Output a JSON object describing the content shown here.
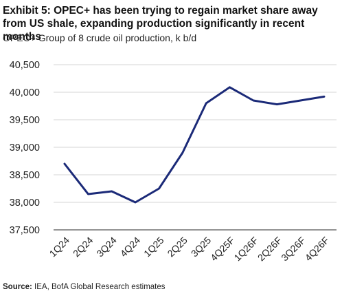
{
  "title": "Exhibit 5: OPEC+ has been trying to regain market share away from US shale, expanding production significantly in recent months",
  "subtitle": "OPEC+ Group of 8 crude oil production, k b/d",
  "source": {
    "label": "Source:",
    "text": "IEA, BofA Global Research estimates"
  },
  "chart_data": {
    "type": "line",
    "categories": [
      "1Q24",
      "2Q24",
      "3Q24",
      "4Q24",
      "1Q25",
      "2Q25",
      "3Q25",
      "4Q25F",
      "1Q26F",
      "2Q26F",
      "3Q26F",
      "4Q26F"
    ],
    "series": [
      {
        "values": [
          38700,
          38150,
          38200,
          38000,
          38250,
          38900,
          39800,
          40090,
          39850,
          39780,
          39850,
          39920
        ],
        "color": "#1b2a78"
      }
    ],
    "ylim": [
      37500,
      40500
    ],
    "yticks": [
      37500,
      38000,
      38500,
      39000,
      39500,
      40000,
      40500
    ],
    "ytick_labels": [
      "37,500",
      "38,000",
      "38,500",
      "39,000",
      "39,500",
      "40,000",
      "40,500"
    ],
    "grid": true,
    "title": "",
    "xlabel": "",
    "ylabel": ""
  }
}
